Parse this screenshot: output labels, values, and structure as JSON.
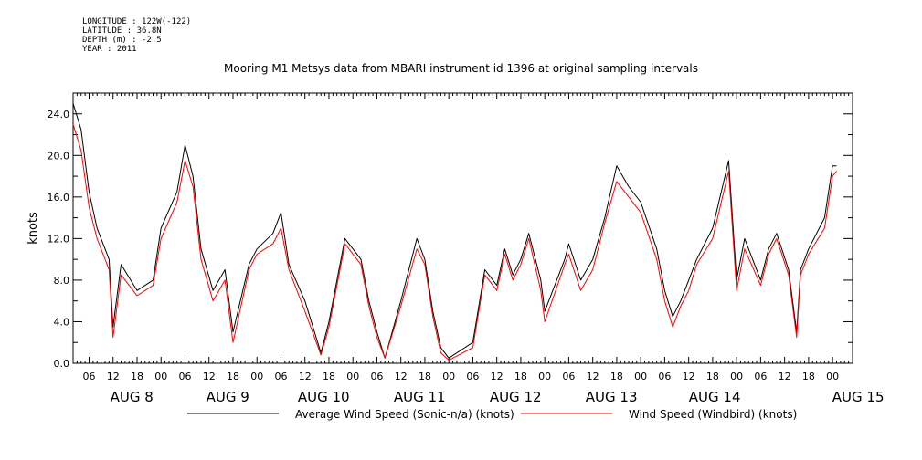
{
  "meta_lines": [
    "LONGITUDE : 122W(-122)",
    "LATITUDE : 36.8N",
    "DEPTH (m) : -2.5",
    "YEAR : 2011"
  ],
  "chart_data": {
    "type": "line",
    "title": "Mooring M1 Metsys data from MBARI instrument id 1396 at original sampling intervals",
    "ylabel": "knots",
    "xlabel": "",
    "ylim": [
      0,
      26
    ],
    "yticks": [
      "0.0",
      "4.0",
      "8.0",
      "12.0",
      "16.0",
      "20.0",
      "24.0"
    ],
    "xlim_hours": [
      "AUG 7 2011 02:00",
      "AUG 15 2011 05:00"
    ],
    "hour_tick_labels": [
      "06",
      "12",
      "18",
      "00",
      "06",
      "12",
      "18",
      "00",
      "06",
      "12",
      "18",
      "00",
      "06",
      "12",
      "18",
      "00",
      "06",
      "12",
      "18",
      "00",
      "06",
      "12",
      "18",
      "00",
      "06",
      "12",
      "18",
      "00",
      "06",
      "12",
      "18",
      "00"
    ],
    "day_labels": [
      "AUG 8",
      "AUG 9",
      "AUG 10",
      "AUG 11",
      "AUG 12",
      "AUG 13",
      "AUG 14",
      "AUG 15"
    ],
    "grid": false,
    "legend_position": "bottom",
    "series": [
      {
        "name": "Average Wind Speed (Sonic-n/a) (knots)",
        "color": "#000000",
        "x": [
          "AUG 7 02:00",
          "AUG 7 04:00",
          "AUG 7 06:00",
          "AUG 7 08:00",
          "AUG 7 11:00",
          "AUG 7 12:00",
          "AUG 7 14:00",
          "AUG 7 18:00",
          "AUG 7 22:00",
          "AUG 8 00:00",
          "AUG 8 04:00",
          "AUG 8 06:00",
          "AUG 8 08:00",
          "AUG 8 10:00",
          "AUG 8 13:00",
          "AUG 8 16:00",
          "AUG 8 18:00",
          "AUG 8 22:00",
          "AUG 9 00:00",
          "AUG 9 04:00",
          "AUG 9 06:00",
          "AUG 9 08:00",
          "AUG 9 12:00",
          "AUG 9 16:00",
          "AUG 9 18:00",
          "AUG 9 22:00",
          "AUG 10 02:00",
          "AUG 10 04:00",
          "AUG 10 06:00",
          "AUG 10 08:00",
          "AUG 10 12:00",
          "AUG 10 16:00",
          "AUG 10 18:00",
          "AUG 10 20:00",
          "AUG 10 22:00",
          "AUG 11 00:00",
          "AUG 11 06:00",
          "AUG 11 09:00",
          "AUG 11 12:00",
          "AUG 11 14:00",
          "AUG 11 16:00",
          "AUG 11 18:00",
          "AUG 11 20:00",
          "AUG 11 23:00",
          "AUG 12 00:00",
          "AUG 12 05:00",
          "AUG 12 06:00",
          "AUG 12 09:00",
          "AUG 12 12:00",
          "AUG 12 15:00",
          "AUG 12 18:00",
          "AUG 12 21:00",
          "AUG 13 00:00",
          "AUG 13 04:00",
          "AUG 13 06:00",
          "AUG 13 08:00",
          "AUG 13 10:00",
          "AUG 13 12:00",
          "AUG 13 14:00",
          "AUG 13 18:00",
          "AUG 13 22:00",
          "AUG 14 00:00",
          "AUG 14 02:00",
          "AUG 14 06:00",
          "AUG 14 08:00",
          "AUG 14 10:00",
          "AUG 14 13:00",
          "AUG 14 15:00",
          "AUG 14 16:00",
          "AUG 14 18:00",
          "AUG 14 22:00",
          "AUG 15 00:00",
          "AUG 15 01:00"
        ],
        "y": [
          25.0,
          22.5,
          16.5,
          13.0,
          10.0,
          3.5,
          9.5,
          7.0,
          8.0,
          13.0,
          16.5,
          21.0,
          18.0,
          11.0,
          7.0,
          9.0,
          3.0,
          9.5,
          11.0,
          12.5,
          14.5,
          9.5,
          6.0,
          1.0,
          4.0,
          12.0,
          10.0,
          6.0,
          3.0,
          0.5,
          6.0,
          12.0,
          10.0,
          5.0,
          1.5,
          0.5,
          2.0,
          9.0,
          7.5,
          11.0,
          8.5,
          10.0,
          12.5,
          8.0,
          5.0,
          10.0,
          11.5,
          8.0,
          10.0,
          14.0,
          19.0,
          17.0,
          15.5,
          11.0,
          7.0,
          4.5,
          6.0,
          8.0,
          10.0,
          13.0,
          19.5,
          8.0,
          12.0,
          8.0,
          11.0,
          12.5,
          9.0,
          3.0,
          9.0,
          11.0,
          14.0,
          19.0,
          19.0
        ]
      },
      {
        "name": "Wind Speed (Windbird) (knots)",
        "color": "#ff0000",
        "x": [
          "AUG 7 02:00",
          "AUG 7 04:00",
          "AUG 7 06:00",
          "AUG 7 08:00",
          "AUG 7 11:00",
          "AUG 7 12:00",
          "AUG 7 14:00",
          "AUG 7 18:00",
          "AUG 7 22:00",
          "AUG 8 00:00",
          "AUG 8 04:00",
          "AUG 8 06:00",
          "AUG 8 08:00",
          "AUG 8 10:00",
          "AUG 8 13:00",
          "AUG 8 16:00",
          "AUG 8 18:00",
          "AUG 8 22:00",
          "AUG 9 00:00",
          "AUG 9 04:00",
          "AUG 9 06:00",
          "AUG 9 08:00",
          "AUG 9 12:00",
          "AUG 9 16:00",
          "AUG 9 18:00",
          "AUG 9 22:00",
          "AUG 10 02:00",
          "AUG 10 04:00",
          "AUG 10 06:00",
          "AUG 10 08:00",
          "AUG 10 12:00",
          "AUG 10 16:00",
          "AUG 10 18:00",
          "AUG 10 20:00",
          "AUG 10 22:00",
          "AUG 11 00:00",
          "AUG 11 06:00",
          "AUG 11 09:00",
          "AUG 11 12:00",
          "AUG 11 14:00",
          "AUG 11 16:00",
          "AUG 11 18:00",
          "AUG 11 20:00",
          "AUG 11 23:00",
          "AUG 12 00:00",
          "AUG 12 05:00",
          "AUG 12 06:00",
          "AUG 12 09:00",
          "AUG 12 12:00",
          "AUG 12 15:00",
          "AUG 12 18:00",
          "AUG 12 21:00",
          "AUG 13 00:00",
          "AUG 13 04:00",
          "AUG 13 06:00",
          "AUG 13 08:00",
          "AUG 13 10:00",
          "AUG 13 12:00",
          "AUG 13 14:00",
          "AUG 13 18:00",
          "AUG 13 22:00",
          "AUG 14 00:00",
          "AUG 14 02:00",
          "AUG 14 06:00",
          "AUG 14 08:00",
          "AUG 14 10:00",
          "AUG 14 13:00",
          "AUG 14 15:00",
          "AUG 14 16:00",
          "AUG 14 18:00",
          "AUG 14 22:00",
          "AUG 15 00:00",
          "AUG 15 01:00"
        ],
        "y": [
          23.0,
          20.5,
          15.0,
          12.0,
          9.0,
          2.5,
          8.5,
          6.5,
          7.5,
          12.0,
          15.5,
          19.5,
          17.0,
          10.0,
          6.0,
          8.0,
          2.0,
          9.0,
          10.5,
          11.5,
          13.0,
          9.0,
          5.0,
          0.8,
          3.5,
          11.5,
          9.5,
          5.5,
          2.5,
          0.5,
          5.5,
          11.0,
          9.5,
          4.5,
          1.0,
          0.3,
          1.5,
          8.5,
          7.0,
          10.5,
          8.0,
          9.5,
          12.0,
          7.0,
          4.0,
          9.5,
          10.5,
          7.0,
          9.0,
          13.5,
          17.5,
          16.0,
          14.5,
          10.0,
          6.0,
          3.5,
          5.5,
          7.0,
          9.5,
          12.0,
          18.5,
          7.0,
          11.0,
          7.5,
          10.5,
          12.0,
          8.5,
          2.5,
          8.5,
          10.5,
          13.0,
          18.0,
          18.5
        ]
      }
    ]
  }
}
